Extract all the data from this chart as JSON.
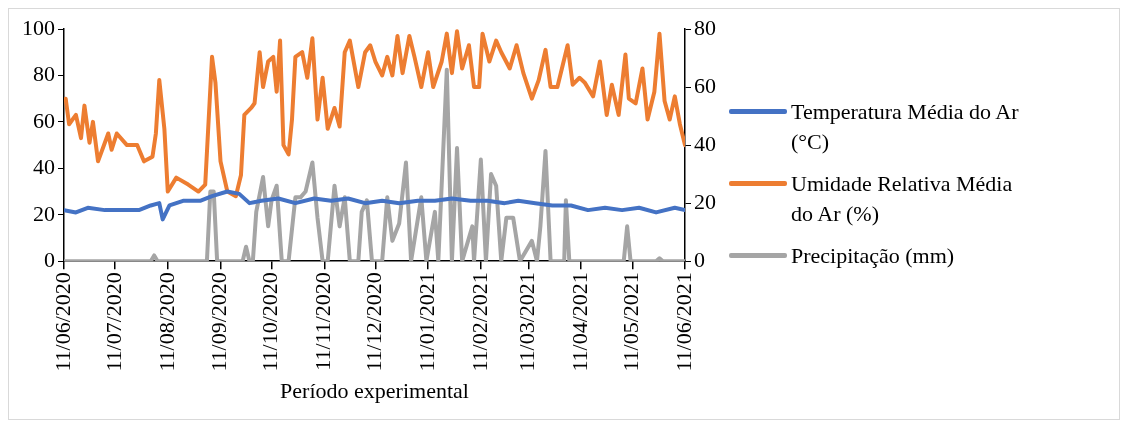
{
  "chart_data": {
    "type": "line",
    "xlabel": "Período experimental",
    "xlim": [
      "2020-06-11",
      "2021-06-11"
    ],
    "xticks": [
      {
        "value": "2020-06-11",
        "label": "11/06/2020"
      },
      {
        "value": "2020-07-11",
        "label": "11/07/2020"
      },
      {
        "value": "2020-08-11",
        "label": "11/08/2020"
      },
      {
        "value": "2020-09-11",
        "label": "11/09/2020"
      },
      {
        "value": "2020-10-11",
        "label": "11/10/2020"
      },
      {
        "value": "2020-11-11",
        "label": "11/11/2020"
      },
      {
        "value": "2020-12-11",
        "label": "11/12/2020"
      },
      {
        "value": "2021-01-11",
        "label": "11/01/2021"
      },
      {
        "value": "2021-02-11",
        "label": "11/02/2021"
      },
      {
        "value": "2021-03-11",
        "label": "11/03/2021"
      },
      {
        "value": "2021-04-11",
        "label": "11/04/2021"
      },
      {
        "value": "2021-05-11",
        "label": "11/05/2021"
      },
      {
        "value": "2021-06-11",
        "label": "11/06/2021"
      }
    ],
    "ylim": [
      0,
      100
    ],
    "yticks": [
      0,
      20,
      40,
      60,
      80,
      100
    ],
    "y2lim": [
      0,
      80
    ],
    "y2ticks": [
      0,
      20,
      40,
      60,
      80
    ],
    "grid": false,
    "legend": "right",
    "marker": "none",
    "line_style": "solid",
    "series": [
      {
        "name": "Temperatura Média do Ar (°C)",
        "color": "#4472c4",
        "x": [
          "2020-06-11",
          "2020-06-18",
          "2020-06-25",
          "2020-07-05",
          "2020-07-15",
          "2020-07-25",
          "2020-08-01",
          "2020-08-06",
          "2020-08-08",
          "2020-08-12",
          "2020-08-20",
          "2020-08-30",
          "2020-09-06",
          "2020-09-15",
          "2020-09-22",
          "2020-09-28",
          "2020-10-05",
          "2020-10-15",
          "2020-10-25",
          "2020-11-05",
          "2020-11-15",
          "2020-11-25",
          "2020-12-05",
          "2020-12-15",
          "2020-12-25",
          "2021-01-05",
          "2021-01-15",
          "2021-01-25",
          "2021-02-05",
          "2021-02-15",
          "2021-02-25",
          "2021-03-05",
          "2021-03-15",
          "2021-03-25",
          "2021-04-05",
          "2021-04-15",
          "2021-04-25",
          "2021-05-05",
          "2021-05-15",
          "2021-05-25",
          "2021-06-05",
          "2021-06-11"
        ],
        "values": [
          22,
          21,
          23,
          22,
          22,
          22,
          24,
          25,
          18,
          24,
          26,
          26,
          28,
          30,
          29,
          25,
          26,
          27,
          25,
          27,
          26,
          27,
          25,
          26,
          25,
          26,
          26,
          27,
          26,
          26,
          25,
          26,
          25,
          24,
          24,
          22,
          23,
          22,
          23,
          21,
          23,
          22
        ]
      },
      {
        "name": "Umidade Relativa Média do Ar (%)",
        "color": "#ed7d31",
        "x": [
          "2020-06-12",
          "2020-06-14",
          "2020-06-18",
          "2020-06-21",
          "2020-06-23",
          "2020-06-26",
          "2020-06-28",
          "2020-07-01",
          "2020-07-07",
          "2020-07-09",
          "2020-07-12",
          "2020-07-18",
          "2020-07-24",
          "2020-07-28",
          "2020-08-02",
          "2020-08-04",
          "2020-08-06",
          "2020-08-09",
          "2020-08-11",
          "2020-08-16",
          "2020-08-23",
          "2020-08-29",
          "2020-09-02",
          "2020-09-06",
          "2020-09-08",
          "2020-09-11",
          "2020-09-15",
          "2020-09-20",
          "2020-09-23",
          "2020-09-25",
          "2020-09-29",
          "2020-10-01",
          "2020-10-04",
          "2020-10-06",
          "2020-10-09",
          "2020-10-12",
          "2020-10-14",
          "2020-10-16",
          "2020-10-18",
          "2020-10-21",
          "2020-10-23",
          "2020-10-25",
          "2020-10-29",
          "2020-11-01",
          "2020-11-04",
          "2020-11-07",
          "2020-11-10",
          "2020-11-13",
          "2020-11-17",
          "2020-11-20",
          "2020-11-23",
          "2020-11-26",
          "2020-12-01",
          "2020-12-05",
          "2020-12-08",
          "2020-12-11",
          "2020-12-15",
          "2020-12-18",
          "2020-12-21",
          "2020-12-24",
          "2020-12-27",
          "2020-12-31",
          "2021-01-03",
          "2021-01-07",
          "2021-01-11",
          "2021-01-14",
          "2021-01-19",
          "2021-01-22",
          "2021-01-25",
          "2021-01-28",
          "2021-01-31",
          "2021-02-04",
          "2021-02-07",
          "2021-02-10",
          "2021-02-12",
          "2021-02-16",
          "2021-02-20",
          "2021-02-23",
          "2021-02-28",
          "2021-03-04",
          "2021-03-08",
          "2021-03-13",
          "2021-03-17",
          "2021-03-21",
          "2021-03-24",
          "2021-03-28",
          "2021-04-03",
          "2021-04-06",
          "2021-04-10",
          "2021-04-13",
          "2021-04-18",
          "2021-04-22",
          "2021-04-26",
          "2021-04-29",
          "2021-05-03",
          "2021-05-07",
          "2021-05-09",
          "2021-05-13",
          "2021-05-17",
          "2021-05-20",
          "2021-05-24",
          "2021-05-27",
          "2021-05-30",
          "2021-06-02",
          "2021-06-05",
          "2021-06-08",
          "2021-06-11"
        ],
        "values": [
          70,
          59,
          63,
          53,
          67,
          51,
          60,
          43,
          55,
          48,
          55,
          50,
          50,
          43,
          45,
          55,
          78,
          57,
          30,
          36,
          33,
          30,
          33,
          88,
          77,
          43,
          30,
          28,
          37,
          63,
          66,
          68,
          90,
          75,
          86,
          88,
          73,
          95,
          50,
          46,
          61,
          88,
          90,
          79,
          96,
          61,
          79,
          57,
          66,
          58,
          90,
          95,
          75,
          90,
          93,
          86,
          80,
          88,
          80,
          97,
          81,
          97,
          88,
          75,
          90,
          75,
          86,
          98,
          81,
          99,
          83,
          93,
          75,
          75,
          98,
          86,
          95,
          90,
          83,
          93,
          81,
          70,
          78,
          91,
          75,
          75,
          93,
          76,
          79,
          77,
          71,
          86,
          63,
          76,
          63,
          89,
          70,
          68,
          83,
          61,
          73,
          98,
          69,
          61,
          71,
          59,
          50
        ]
      },
      {
        "name": "Precipitação (mm)",
        "color": "#a5a5a5",
        "axis": "y2",
        "x": [
          "2020-06-11",
          "2020-08-01",
          "2020-08-03",
          "2020-08-05",
          "2020-09-03",
          "2020-09-05",
          "2020-09-07",
          "2020-09-09",
          "2020-09-24",
          "2020-09-26",
          "2020-09-28",
          "2020-09-30",
          "2020-10-02",
          "2020-10-06",
          "2020-10-09",
          "2020-10-11",
          "2020-10-14",
          "2020-10-17",
          "2020-10-21",
          "2020-10-25",
          "2020-10-28",
          "2020-10-31",
          "2020-11-04",
          "2020-11-07",
          "2020-11-10",
          "2020-11-13",
          "2020-11-17",
          "2020-11-20",
          "2020-11-23",
          "2020-11-26",
          "2020-12-01",
          "2020-12-03",
          "2020-12-06",
          "2020-12-09",
          "2020-12-15",
          "2020-12-18",
          "2020-12-21",
          "2020-12-25",
          "2020-12-29",
          "2021-01-01",
          "2021-01-07",
          "2021-01-10",
          "2021-01-15",
          "2021-01-17",
          "2021-01-22",
          "2021-01-25",
          "2021-01-28",
          "2021-01-31",
          "2021-02-06",
          "2021-02-07",
          "2021-02-11",
          "2021-02-14",
          "2021-02-17",
          "2021-02-20",
          "2021-02-23",
          "2021-02-26",
          "2021-03-02",
          "2021-03-06",
          "2021-03-13",
          "2021-03-16",
          "2021-03-18",
          "2021-03-21",
          "2021-03-24",
          "2021-04-01",
          "2021-04-02",
          "2021-04-04",
          "2021-05-06",
          "2021-05-08",
          "2021-05-10",
          "2021-05-25",
          "2021-05-27",
          "2021-05-29",
          "2021-06-11"
        ],
        "values": [
          0,
          0,
          2,
          0,
          0,
          24,
          24,
          0,
          0,
          5,
          0,
          0,
          17,
          29,
          12,
          21,
          26,
          0,
          0,
          22,
          22,
          24,
          34,
          15,
          0,
          0,
          26,
          12,
          22,
          0,
          0,
          17,
          21,
          0,
          0,
          22,
          7,
          13,
          34,
          0,
          22,
          0,
          17,
          0,
          66,
          0,
          39,
          0,
          12,
          0,
          35,
          0,
          30,
          26,
          0,
          15,
          15,
          0,
          7,
          0,
          12,
          38,
          0,
          0,
          21,
          0,
          0,
          12,
          0,
          0,
          1,
          0,
          0
        ]
      }
    ]
  }
}
